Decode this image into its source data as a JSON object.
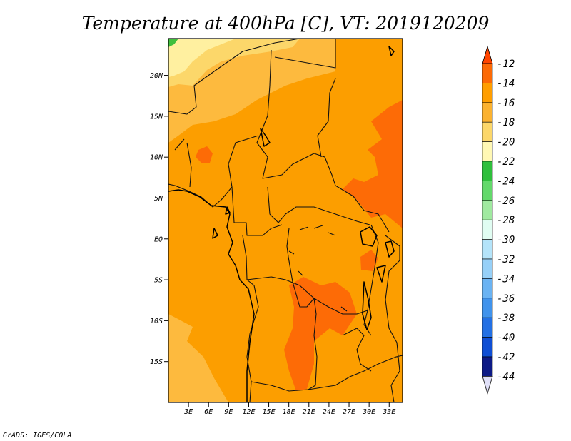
{
  "title": "Temperature at 400hPa [C], VT: 2019120209",
  "credit": "GrADS: IGES/COLA",
  "map": {
    "lon_range": [
      0,
      35
    ],
    "lat_range": [
      -20,
      24.5
    ],
    "y_ticks": [
      "20N",
      "15N",
      "10N",
      "5N",
      "EQ",
      "5S",
      "10S",
      "15S"
    ],
    "x_ticks": [
      "3E",
      "6E",
      "9E",
      "12E",
      "15E",
      "18E",
      "21E",
      "24E",
      "27E",
      "30E",
      "33E"
    ]
  },
  "colorbar": {
    "labels": [
      "-12",
      "-14",
      "-16",
      "-18",
      "-20",
      "-22",
      "-24",
      "-26",
      "-28",
      "-30",
      "-32",
      "-34",
      "-36",
      "-38",
      "-40",
      "-42",
      "-44"
    ],
    "colors": [
      "#ff4500",
      "#fc6a06",
      "#ff9e00",
      "#fbb230",
      "#fcd76a",
      "#fff8b4",
      "#2fbf3c",
      "#63d96b",
      "#a0eaa0",
      "#e0fdf2",
      "#b4e4fa",
      "#96d0f8",
      "#6ab3f3",
      "#4093ec",
      "#2370e4",
      "#0f4ed4",
      "#0d1a86"
    ],
    "top_triangle_color": "#ff4500",
    "bottom_triangle_color": "#e0e0f8",
    "bar_color_bands": [
      "#ff4500",
      "#fc6a06",
      "#ff9e00",
      "#fbb230",
      "#fcd76a",
      "#fff8b4",
      "#2fbf3c",
      "#63d96b",
      "#a0eaa0",
      "#e0fdf2",
      "#b4e4fa",
      "#96d0f8",
      "#6ab3f3",
      "#4093ec",
      "#2370e4",
      "#0f4ed4",
      "#0d1a86"
    ]
  },
  "field_colors": {
    "base": "#fc9e00",
    "warm": "#fd6b06",
    "cool": "#fdba3e",
    "cooler": "#fcd76a",
    "coldest": "#fff0a0",
    "green": "#3fbf3c"
  }
}
